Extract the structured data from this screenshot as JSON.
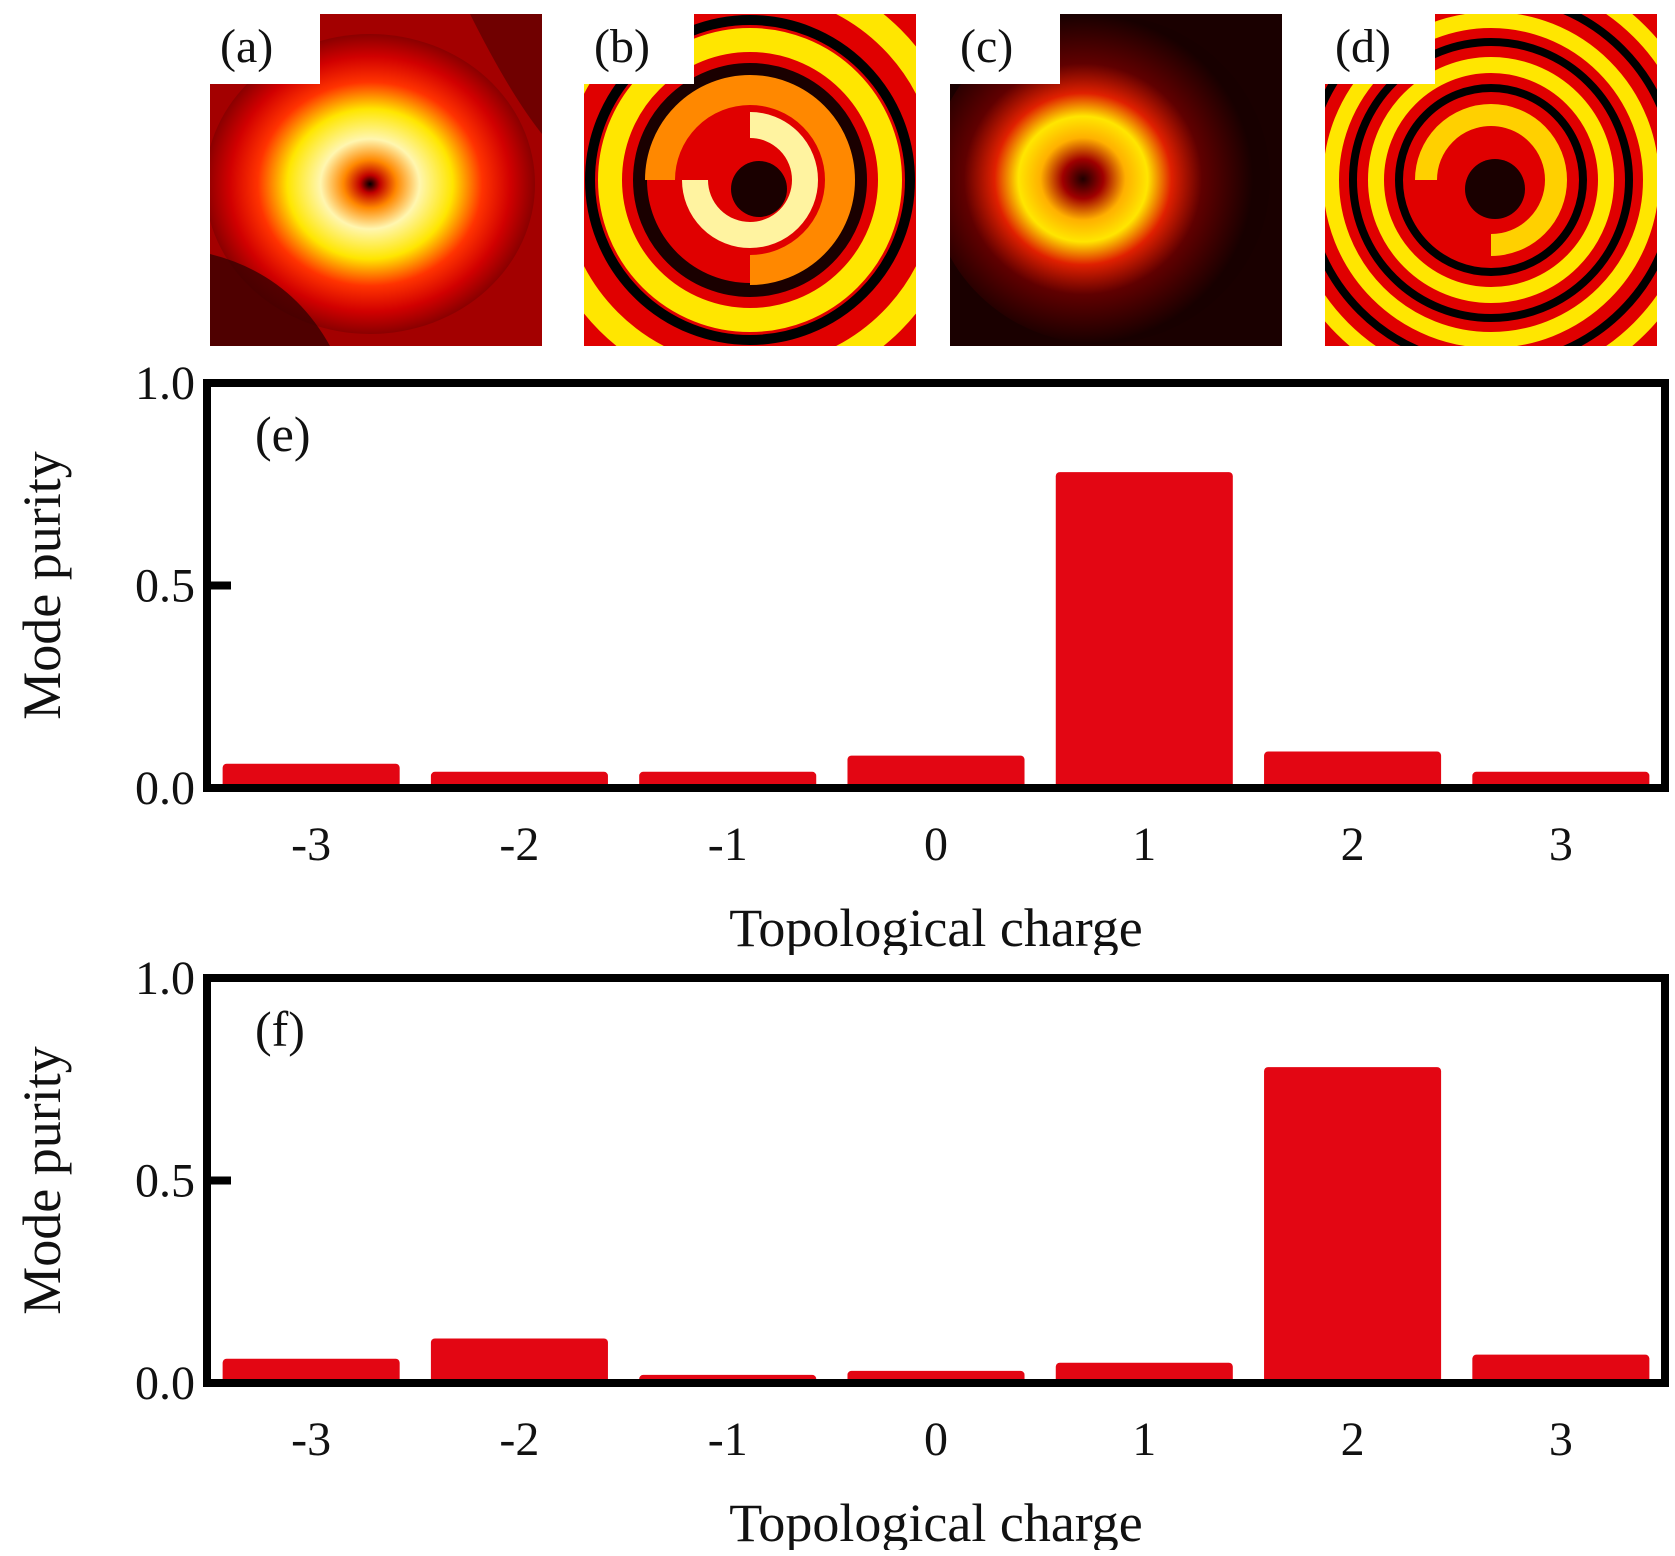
{
  "panels": [
    {
      "label": "(a)",
      "kind": "intensity"
    },
    {
      "label": "(b)",
      "kind": "phase"
    },
    {
      "label": "(c)",
      "kind": "intensity"
    },
    {
      "label": "(d)",
      "kind": "phase"
    }
  ],
  "colors": {
    "bar": "#e30613",
    "axis": "#000000",
    "text": "#111111"
  },
  "chart_data": [
    {
      "type": "bar",
      "panel_label": "(e)",
      "categories": [
        "-3",
        "-2",
        "-1",
        "0",
        "1",
        "2",
        "3"
      ],
      "values": [
        0.06,
        0.04,
        0.04,
        0.08,
        0.78,
        0.09,
        0.04
      ],
      "xlabel": "Topological charge",
      "ylabel": "Mode purity",
      "ylim": [
        0,
        1.0
      ],
      "yticks": [
        "0.0",
        "0.5",
        "1.0"
      ],
      "grid": false
    },
    {
      "type": "bar",
      "panel_label": "(f)",
      "categories": [
        "-3",
        "-2",
        "-1",
        "0",
        "1",
        "2",
        "3"
      ],
      "values": [
        0.06,
        0.11,
        0.02,
        0.03,
        0.05,
        0.78,
        0.07
      ],
      "xlabel": "Topological charge",
      "ylabel": "Mode purity",
      "ylim": [
        0,
        1.0
      ],
      "yticks": [
        "0.0",
        "0.5",
        "1.0"
      ],
      "grid": false
    }
  ]
}
